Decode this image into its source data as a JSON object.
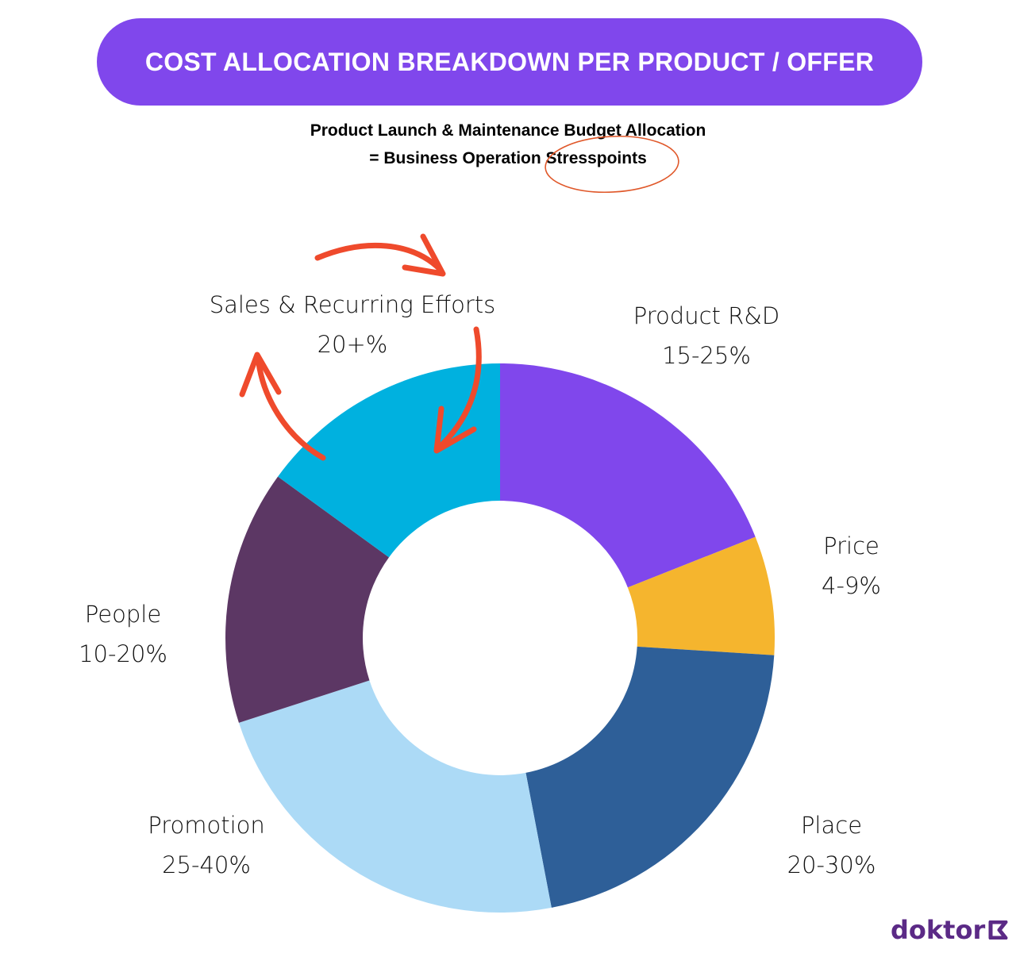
{
  "chart_data": {
    "type": "pie",
    "variant": "donut",
    "title": "COST ALLOCATION BREAKDOWN PER PRODUCT / OFFER",
    "subtitle_lines": [
      "Product Launch & Maintenance Budget Allocation",
      "= Business Operation Stresspoints"
    ],
    "highlighted_word": "Stresspoints",
    "slices": [
      {
        "label": "Product R&D",
        "range": "15-25%",
        "value": 19,
        "color": "#8047ec"
      },
      {
        "label": "Price",
        "range": "4-9%",
        "value": 7,
        "color": "#f5b52e"
      },
      {
        "label": "Place",
        "range": "20-30%",
        "value": 21,
        "color": "#2e5f98"
      },
      {
        "label": "Promotion",
        "range": "25-40%",
        "value": 23,
        "color": "#acdaf6"
      },
      {
        "label": "People",
        "range": "10-20%",
        "value": 15,
        "color": "#5c3764"
      },
      {
        "label": "Sales & Recurring Efforts",
        "range": "20+%",
        "value": 15,
        "color": "#00b1df"
      }
    ],
    "start_angle": "top",
    "direction": "clockwise",
    "annotation_color": "#ef4a2c"
  },
  "brand": {
    "logo_text": "doktor"
  }
}
